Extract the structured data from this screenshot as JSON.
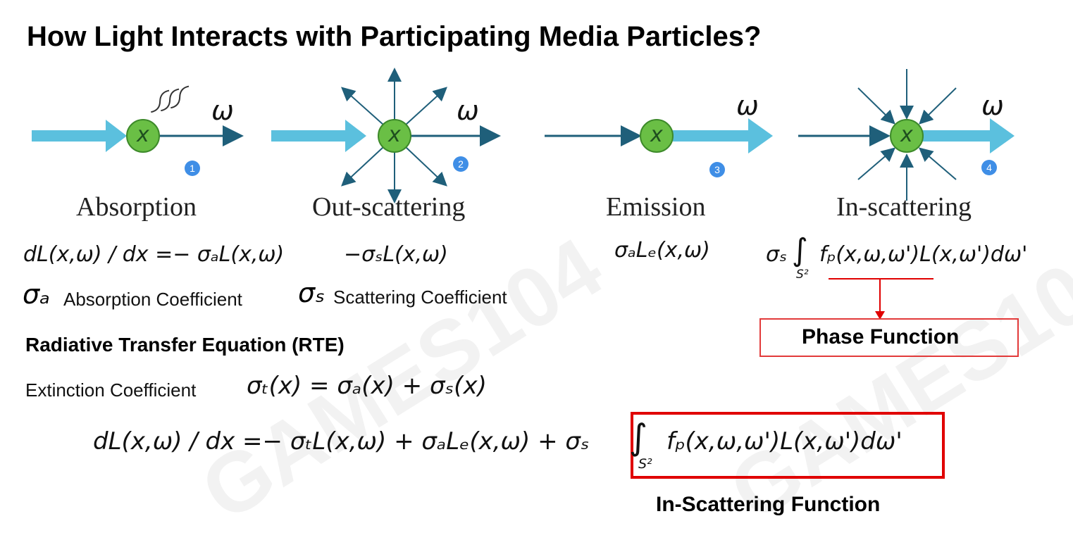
{
  "title": "How Light Interacts with Participating Media Particles?",
  "panels": [
    {
      "caption": "Absorption",
      "badge": "1",
      "omega": "ω",
      "particle": "x"
    },
    {
      "caption": "Out-scattering",
      "badge": "2",
      "omega": "ω",
      "particle": "x"
    },
    {
      "caption": "Emission",
      "badge": "3",
      "omega": "ω",
      "particle": "x"
    },
    {
      "caption": "In-scattering",
      "badge": "4",
      "omega": "ω",
      "particle": "x"
    }
  ],
  "equations": {
    "absorption": "dL(x,ω) / dx =− σₐL(x,ω)",
    "out_scattering": "−σₛL(x,ω)",
    "emission": "σₐLₑ(x,ω)",
    "in_scattering_sigma": "σₛ",
    "in_scattering_integral": "∫",
    "in_scattering_domain": "S²",
    "in_scattering_body": "fₚ(x,ω,ω')L(x,ω')dω'"
  },
  "coefficients": {
    "sigma_a_symbol": "σₐ",
    "sigma_a_label": "Absorption Coefficient",
    "sigma_s_symbol": "σₛ",
    "sigma_s_label": "Scattering Coefficient"
  },
  "phase_function_label": "Phase Function",
  "rte_heading": "Radiative Transfer Equation (RTE)",
  "extinction": {
    "label": "Extinction Coefficient",
    "formula": "σₜ(x) = σₐ(x) + σₛ(x)"
  },
  "rte": {
    "main": "dL(x,ω) / dx =− σₜL(x,ω) + σₐLₑ(x,ω) + σₛ",
    "integral": "∫",
    "domain": "S²",
    "body": "fₚ(x,ω,ω')L(x,ω')dω'"
  },
  "in_scattering_function_label": "In-Scattering Function",
  "colors": {
    "arrow_light": "#5bc0de",
    "arrow_dark": "#1f5f7a",
    "particle": "#6abf45",
    "badge": "#3f8ee6",
    "red": "#e00000"
  }
}
